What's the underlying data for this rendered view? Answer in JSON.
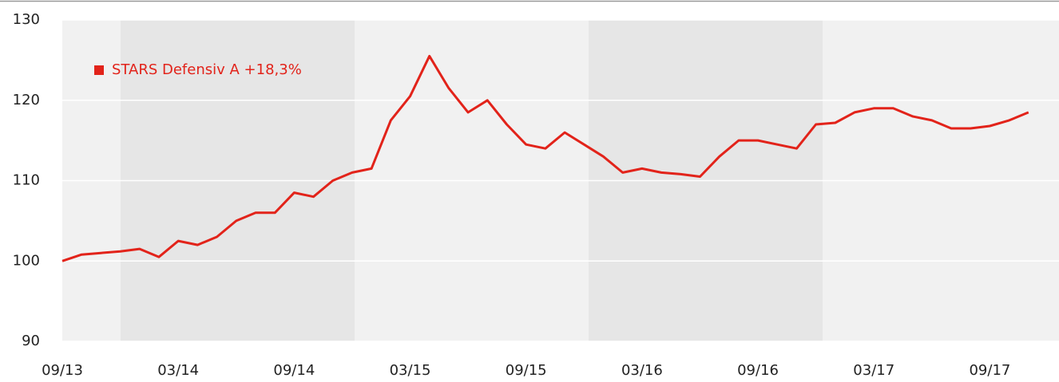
{
  "chart_data": {
    "type": "line",
    "x": [
      "09/13",
      "10/13",
      "11/13",
      "12/13",
      "01/14",
      "02/14",
      "03/14",
      "04/14",
      "05/14",
      "06/14",
      "07/14",
      "08/14",
      "09/14",
      "10/14",
      "11/14",
      "12/14",
      "01/15",
      "02/15",
      "03/15",
      "04/15",
      "05/15",
      "06/15",
      "07/15",
      "08/15",
      "09/15",
      "10/15",
      "11/15",
      "12/15",
      "01/16",
      "02/16",
      "03/16",
      "04/16",
      "05/16",
      "06/16",
      "07/16",
      "08/16",
      "09/16",
      "10/16",
      "11/16",
      "12/16",
      "01/17",
      "02/17",
      "03/17",
      "04/17",
      "05/17",
      "06/17",
      "07/17",
      "08/17",
      "09/17",
      "10/17",
      "11/17"
    ],
    "series": [
      {
        "name": "STARS Defensiv A +18,3%",
        "color": "#e2231a",
        "values": [
          100,
          100.8,
          101,
          101.2,
          101.5,
          100.5,
          102.5,
          102,
          103,
          105,
          106,
          106,
          108.5,
          108,
          110,
          111,
          111.5,
          117.5,
          120.5,
          125.5,
          121.5,
          118.5,
          120,
          117,
          114.5,
          114,
          116,
          114.5,
          113,
          111,
          111.5,
          111,
          110.8,
          110.5,
          113,
          115,
          115,
          114.5,
          114,
          117,
          117.2,
          118.5,
          119,
          119,
          118,
          117.5,
          116.5,
          116.5,
          116.8,
          117.5,
          118.5
        ]
      }
    ],
    "xlim": [
      "09/13",
      "12/17"
    ],
    "xticks": [
      "09/13",
      "03/14",
      "09/14",
      "03/15",
      "09/15",
      "03/16",
      "09/16",
      "03/17",
      "09/17"
    ],
    "ylim": [
      90,
      130
    ],
    "yticks": [
      90,
      100,
      110,
      120,
      130
    ],
    "grid": true,
    "legend": "top-left"
  }
}
